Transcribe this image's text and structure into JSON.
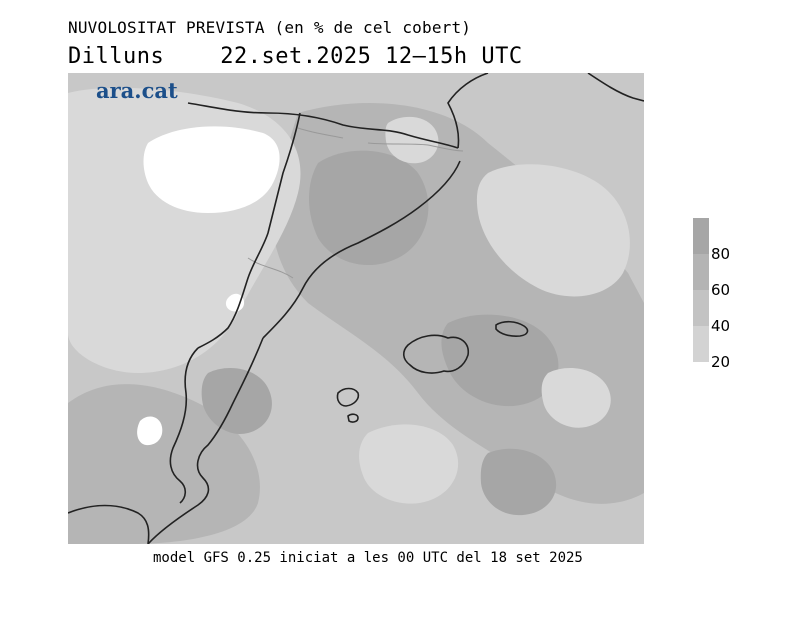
{
  "header": {
    "title": "NUVOLOSITAT PREVISTA (en % de cel cobert)",
    "day": "Dilluns",
    "time_range": "22.set.2025 12–15h UTC"
  },
  "brand": {
    "logo_text": "ara.cat"
  },
  "legend": {
    "labels": [
      "80",
      "60",
      "40",
      "20"
    ],
    "bands": [
      {
        "color": "#a6a6a6"
      },
      {
        "color": "#b4b4b4"
      },
      {
        "color": "#c3c3c3"
      },
      {
        "color": "#d3d3d3"
      }
    ]
  },
  "colors": {
    "clear": "#ffffff",
    "light": "#d9d9d9",
    "medium": "#c8c8c8",
    "heavy": "#b5b5b5",
    "very_heavy": "#a6a6a6",
    "coastline": "#222222",
    "border": "#999999"
  },
  "footer": {
    "text": "model GFS 0.25 iniciat a les 00 UTC del 18 set 2025"
  }
}
